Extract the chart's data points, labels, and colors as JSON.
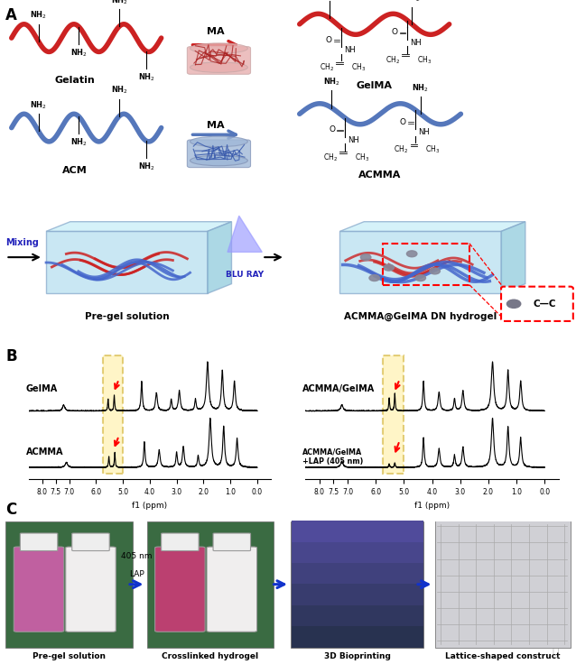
{
  "panel_A_label": "A",
  "panel_B_label": "B",
  "panel_C_label": "C",
  "gelatin_label": "Gelatin",
  "acm_label": "ACM",
  "gelma_label": "GelMA",
  "acmma_label": "ACMMA",
  "pregel_label": "Pre-gel solution",
  "hydrogel_label": "ACMMA@GelMA DN hydrogel",
  "mixing_label": "Mixing",
  "blueray_label": "BLU RAY",
  "cc_label": "C—C",
  "ma_label": "MA",
  "panel_C_labels": [
    "Pre-gel solution",
    "Crosslinked hydrogel",
    "3D Bioprinting",
    "Lattice-shaped construct"
  ],
  "nmr_left_labels": [
    "GelMA",
    "ACMMA"
  ],
  "nmr_right_labels": [
    "ACMMA/GelMA",
    "ACMMA/GelMA\n+LAP (405 nm)"
  ],
  "bg_color": "#ffffff",
  "gelatin_curve_color": "#cc2222",
  "acm_curve_color": "#5577bb",
  "highlight_box_color": "#ddcc44",
  "blue_arrow_color": "#2222bb"
}
